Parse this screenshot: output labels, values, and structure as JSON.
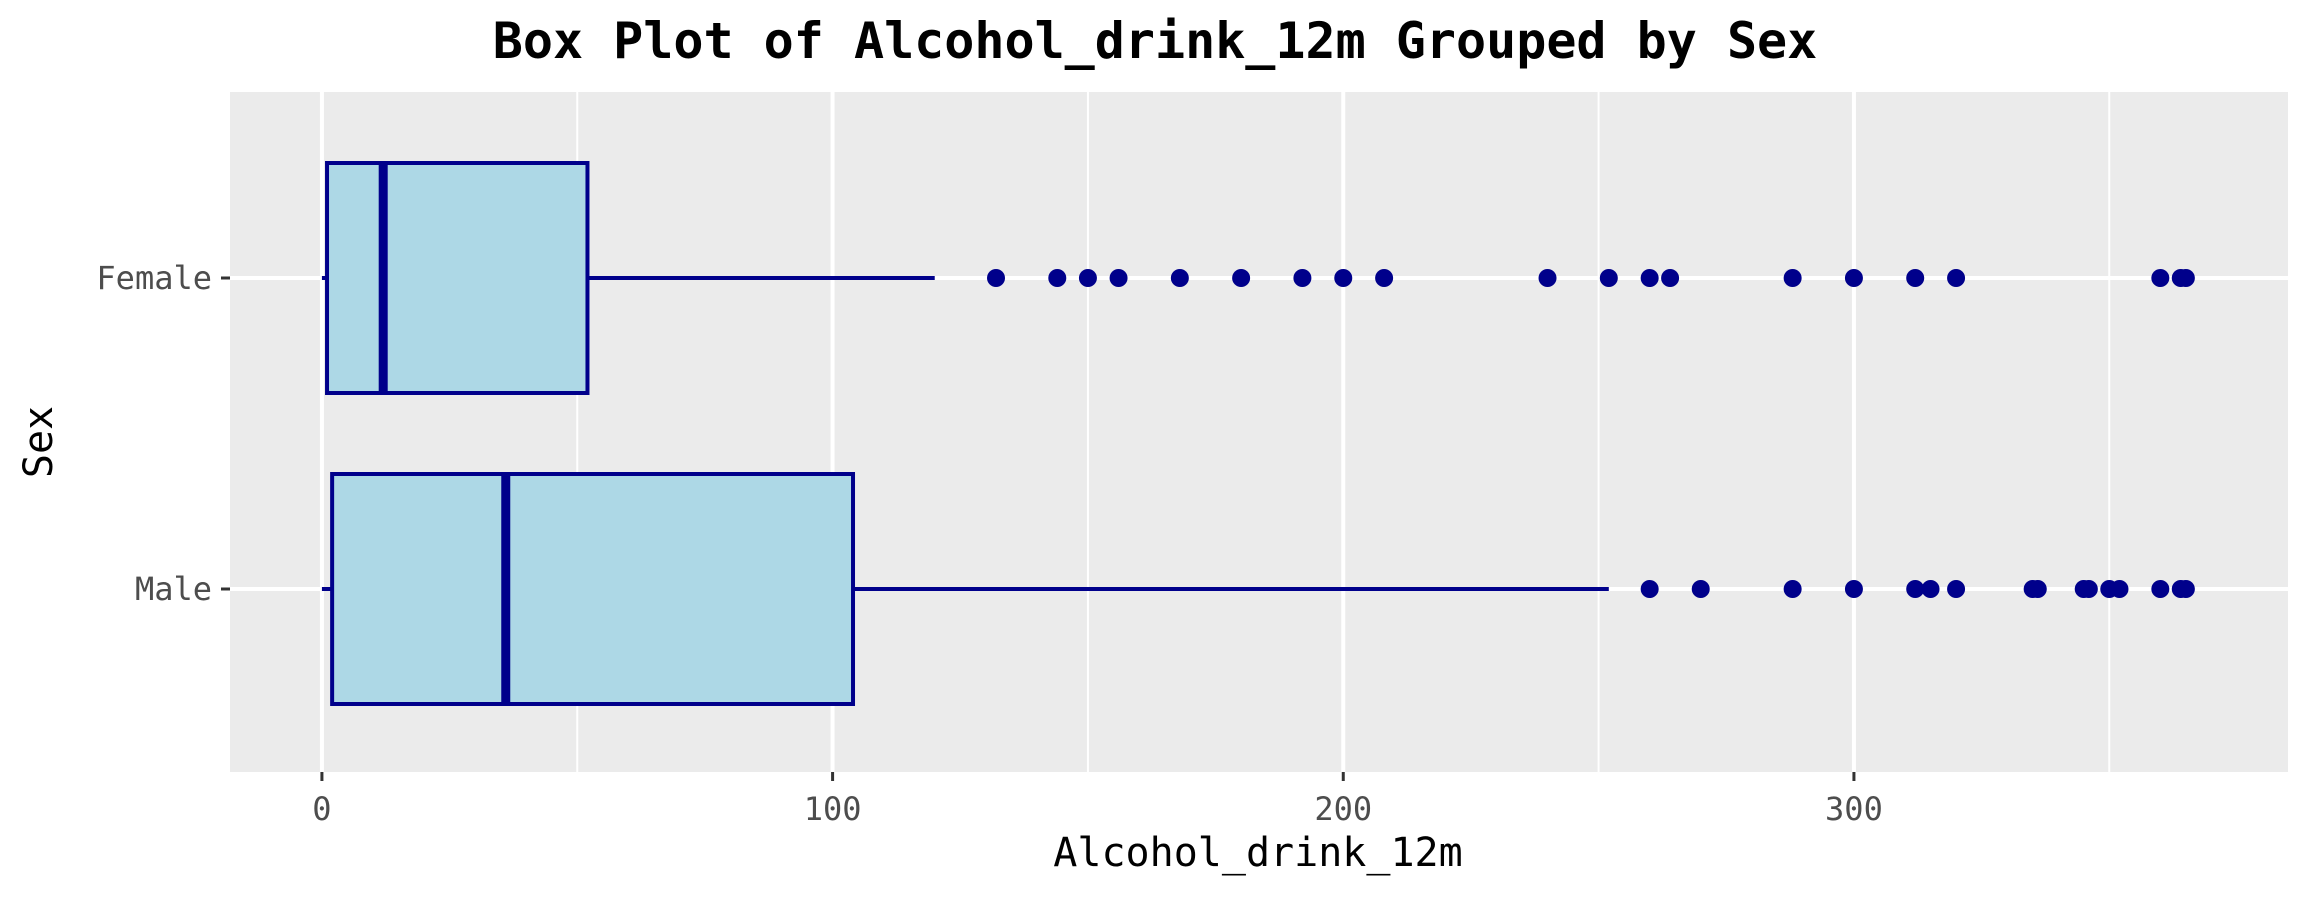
{
  "chart_data": {
    "type": "box",
    "title": "Box Plot of Alcohol_drink_12m Grouped by Sex",
    "xlabel": "Alcohol_drink_12m",
    "ylabel": "Sex",
    "xlim": [
      -18,
      385
    ],
    "x_ticks": [
      {
        "value": 0,
        "label": "0"
      },
      {
        "value": 100,
        "label": "100"
      },
      {
        "value": 200,
        "label": "200"
      },
      {
        "value": 300,
        "label": "300"
      }
    ],
    "x_minor_ticks": [
      50,
      150,
      250,
      350
    ],
    "grid": true,
    "orientation": "horizontal",
    "colors": {
      "panel_background": "#ebebeb",
      "grid": "#ffffff",
      "box_fill": "#add8e6",
      "box_line": "#00008b",
      "outlier": "#00008b"
    },
    "groups": [
      {
        "category": "Female",
        "whisker_low": 0,
        "q1": 1,
        "median": 12,
        "q3": 52,
        "whisker_high": 120,
        "outliers": [
          132,
          144,
          150,
          156,
          168,
          180,
          192,
          200,
          208,
          240,
          252,
          260,
          264,
          288,
          300,
          312,
          320,
          360,
          364,
          365
        ]
      },
      {
        "category": "Male",
        "whisker_low": 0,
        "q1": 2,
        "median": 36,
        "q3": 104,
        "whisker_high": 252,
        "outliers": [
          260,
          270,
          288,
          300,
          312,
          315,
          320,
          335,
          336,
          345,
          346,
          350,
          352,
          360,
          364,
          365
        ]
      }
    ]
  }
}
